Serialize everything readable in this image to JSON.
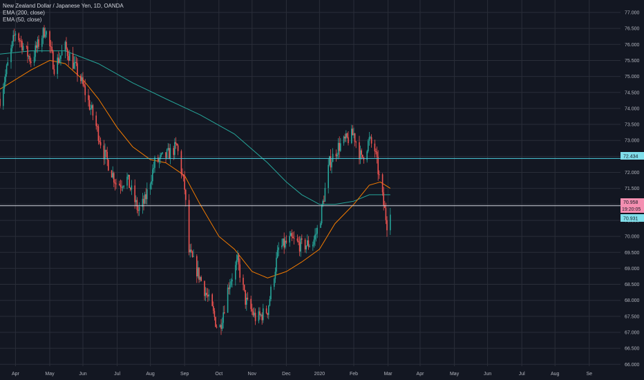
{
  "legend": {
    "symbol": "New Zealand Dollar / Japanese Yen, 1D, OANDA",
    "ema200": "EMA (200, close)",
    "ema50": "EMA (50, close)"
  },
  "colors": {
    "background": "#131722",
    "grid": "#2a2e39",
    "up": "#26a69a",
    "down": "#ef5350",
    "ema200": "#26a69a",
    "ema50": "#f57c00",
    "hline_cyan": "#4dd0e1",
    "hline_white": "#d1d4dc",
    "price_label": "#f48fb1",
    "level_label": "#80deea"
  },
  "badges": {
    "level": "72.434",
    "last_price": "70.958",
    "countdown": "19:20:05",
    "bid": "70.931"
  },
  "chart_data": {
    "type": "candlestick",
    "x_ticks": [
      "Mar",
      "Apr",
      "May",
      "Jun",
      "Jul",
      "Aug",
      "Sep",
      "Oct",
      "Nov",
      "Dec",
      "2020",
      "Feb",
      "Mar",
      "Apr",
      "May",
      "Jun",
      "Jul",
      "Aug",
      "Se"
    ],
    "y_ticks": [
      "77.000",
      "76.500",
      "76.000",
      "75.500",
      "75.000",
      "74.500",
      "74.000",
      "73.500",
      "73.000",
      "72.500",
      "72.000",
      "71.500",
      "71.000",
      "70.500",
      "70.000",
      "69.500",
      "69.000",
      "68.500",
      "68.000",
      "67.500",
      "67.000",
      "66.500",
      "66.000"
    ],
    "ylim": [
      65.75,
      77.25
    ],
    "grid": true,
    "horizontal_levels": [
      72.434,
      70.958
    ],
    "anchors": [
      [
        "2019-02-15",
        74.3
      ],
      [
        "2019-03-01",
        76.4
      ],
      [
        "2019-03-15",
        75.5
      ],
      [
        "2019-03-28",
        76.5
      ],
      [
        "2019-04-05",
        75.3
      ],
      [
        "2019-04-15",
        75.9
      ],
      [
        "2019-04-28",
        75.0
      ],
      [
        "2019-05-10",
        73.8
      ],
      [
        "2019-05-20",
        72.6
      ],
      [
        "2019-06-01",
        71.6
      ],
      [
        "2019-06-10",
        71.8
      ],
      [
        "2019-06-20",
        70.8
      ],
      [
        "2019-06-26",
        71.1
      ],
      [
        "2019-07-05",
        72.3
      ],
      [
        "2019-07-15",
        72.5
      ],
      [
        "2019-07-25",
        72.8
      ],
      [
        "2019-08-01",
        71.5
      ],
      [
        "2019-08-05",
        69.5
      ],
      [
        "2019-08-15",
        68.7
      ],
      [
        "2019-08-25",
        67.8
      ],
      [
        "2019-09-01",
        67.0
      ],
      [
        "2019-09-10",
        68.5
      ],
      [
        "2019-09-18",
        69.2
      ],
      [
        "2019-09-25",
        68.0
      ],
      [
        "2019-10-05",
        67.4
      ],
      [
        "2019-10-15",
        67.7
      ],
      [
        "2019-10-25",
        69.6
      ],
      [
        "2019-11-05",
        69.9
      ],
      [
        "2019-11-15",
        69.7
      ],
      [
        "2019-11-25",
        69.8
      ],
      [
        "2019-12-01",
        70.4
      ],
      [
        "2019-12-10",
        72.3
      ],
      [
        "2019-12-18",
        72.8
      ],
      [
        "2020-01-01",
        73.2
      ],
      [
        "2020-01-08",
        72.4
      ],
      [
        "2020-01-15",
        73.0
      ],
      [
        "2020-01-20",
        72.7
      ],
      [
        "2020-01-27",
        71.2
      ],
      [
        "2020-01-31",
        70.4
      ],
      [
        "2020-02-03",
        70.9
      ]
    ],
    "ema50": [
      [
        "2019-02-15",
        74.6
      ],
      [
        "2019-03-15",
        75.2
      ],
      [
        "2019-04-01",
        75.5
      ],
      [
        "2019-04-15",
        75.4
      ],
      [
        "2019-05-01",
        74.9
      ],
      [
        "2019-05-15",
        74.3
      ],
      [
        "2019-06-01",
        73.4
      ],
      [
        "2019-06-15",
        72.8
      ],
      [
        "2019-07-01",
        72.4
      ],
      [
        "2019-07-15",
        72.3
      ],
      [
        "2019-08-01",
        71.9
      ],
      [
        "2019-08-15",
        71.0
      ],
      [
        "2019-09-01",
        70.0
      ],
      [
        "2019-09-15",
        69.6
      ],
      [
        "2019-10-01",
        68.9
      ],
      [
        "2019-10-15",
        68.7
      ],
      [
        "2019-11-01",
        68.9
      ],
      [
        "2019-11-15",
        69.2
      ],
      [
        "2019-12-01",
        69.6
      ],
      [
        "2019-12-15",
        70.4
      ],
      [
        "2020-01-01",
        71.0
      ],
      [
        "2020-01-15",
        71.6
      ],
      [
        "2020-01-25",
        71.7
      ],
      [
        "2020-02-03",
        71.5
      ]
    ],
    "ema200": [
      [
        "2019-02-15",
        75.7
      ],
      [
        "2019-03-15",
        75.8
      ],
      [
        "2019-04-15",
        75.8
      ],
      [
        "2019-05-15",
        75.4
      ],
      [
        "2019-06-15",
        74.8
      ],
      [
        "2019-07-15",
        74.3
      ],
      [
        "2019-08-15",
        73.8
      ],
      [
        "2019-09-15",
        73.2
      ],
      [
        "2019-10-15",
        72.3
      ],
      [
        "2019-11-01",
        71.7
      ],
      [
        "2019-11-15",
        71.3
      ],
      [
        "2019-12-01",
        71.0
      ],
      [
        "2019-12-15",
        71.0
      ],
      [
        "2020-01-01",
        71.1
      ],
      [
        "2020-01-15",
        71.3
      ],
      [
        "2020-02-03",
        71.3
      ]
    ]
  }
}
